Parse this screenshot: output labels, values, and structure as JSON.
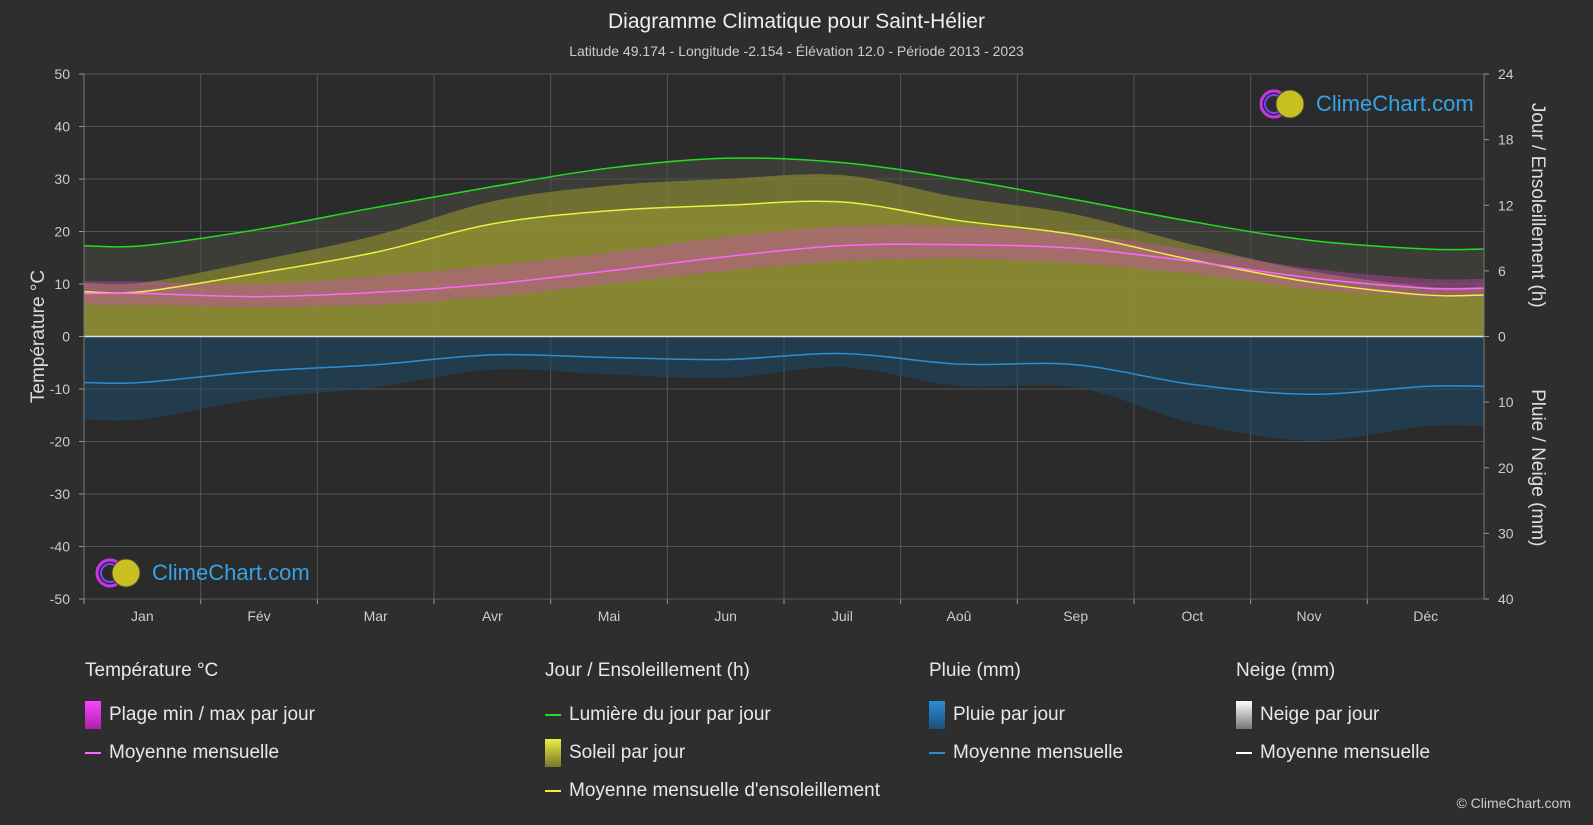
{
  "header": {
    "title": "Diagramme Climatique pour Saint-Hélier",
    "subtitle": "Latitude 49.174 - Longitude -2.154 - Élévation 12.0 - Période 2013 - 2023"
  },
  "logo": {
    "text": "ClimeChart.com"
  },
  "copyright": "© ClimeChart.com",
  "legend": {
    "temperature": {
      "heading": "Température °C",
      "range": "Plage min / max par jour",
      "mean": "Moyenne mensuelle"
    },
    "sun": {
      "heading": "Jour / Ensoleillement (h)",
      "daylight": "Lumière du jour par jour",
      "sunshine": "Soleil par jour",
      "sun_mean": "Moyenne mensuelle d'ensoleillement"
    },
    "rain": {
      "heading": "Pluie (mm)",
      "per_day": "Pluie par jour",
      "mean": "Moyenne mensuelle"
    },
    "snow": {
      "heading": "Neige (mm)",
      "per_day": "Neige par jour",
      "mean": "Moyenne mensuelle"
    }
  },
  "colors": {
    "background": "#2e2e2e",
    "daylight": "#22dd22",
    "sunshine_mean": "#eeee44",
    "sunshine_fill": "#9a9a30",
    "temp_mean": "#ff66ff",
    "temp_range": "#dd44cc",
    "rain": "#2a8fd8",
    "snow": "#ffffff"
  },
  "chart_data": {
    "type": "area",
    "months": [
      "Jan",
      "Fév",
      "Mar",
      "Avr",
      "Mai",
      "Jun",
      "Juil",
      "Aoû",
      "Sep",
      "Oct",
      "Nov",
      "Déc"
    ],
    "axes": {
      "left": {
        "label": "Température °C",
        "range": [
          -50,
          50
        ],
        "ticks": [
          50,
          40,
          30,
          20,
          10,
          0,
          -10,
          -20,
          -30,
          -40,
          -50
        ]
      },
      "right_top": {
        "label": "Jour / Ensoleillement (h)",
        "range": [
          0,
          24
        ],
        "ticks": [
          24,
          18,
          12,
          6,
          0
        ]
      },
      "right_bottom": {
        "label": "Pluie / Neige (mm)",
        "range": [
          0,
          40
        ],
        "ticks": [
          0,
          10,
          20,
          30,
          40
        ]
      }
    },
    "grid": true,
    "series": [
      {
        "name": "Lumière du jour par jour",
        "unit": "h",
        "values": [
          8.3,
          9.8,
          11.8,
          13.7,
          15.4,
          16.3,
          15.9,
          14.4,
          12.5,
          10.5,
          8.8,
          8.0
        ]
      },
      {
        "name": "Moyenne mensuelle d'ensoleillement",
        "unit": "h",
        "values": [
          4.1,
          5.8,
          7.7,
          10.3,
          11.5,
          12.0,
          12.3,
          10.6,
          9.3,
          7.0,
          5.0,
          3.8
        ]
      },
      {
        "name": "Moyenne mensuelle (température)",
        "unit": "°C",
        "values": [
          8.2,
          7.6,
          8.4,
          10.0,
          12.5,
          15.2,
          17.3,
          17.5,
          16.8,
          14.3,
          11.2,
          9.2
        ]
      },
      {
        "name": "Plage min (température)",
        "unit": "°C",
        "values": [
          6.0,
          5.5,
          6.0,
          7.5,
          10.0,
          12.5,
          14.5,
          15.0,
          14.0,
          12.0,
          9.0,
          7.5
        ]
      },
      {
        "name": "Plage max (température)",
        "unit": "°C",
        "values": [
          10.5,
          10.0,
          11.5,
          13.5,
          16.0,
          19.0,
          21.0,
          21.0,
          19.5,
          16.5,
          13.0,
          11.0
        ]
      },
      {
        "name": "Moyenne mensuelle (pluie)",
        "unit": "mm",
        "values": [
          7.0,
          5.3,
          4.3,
          2.8,
          3.2,
          3.5,
          2.6,
          4.2,
          4.3,
          7.3,
          8.8,
          7.6
        ]
      }
    ]
  }
}
